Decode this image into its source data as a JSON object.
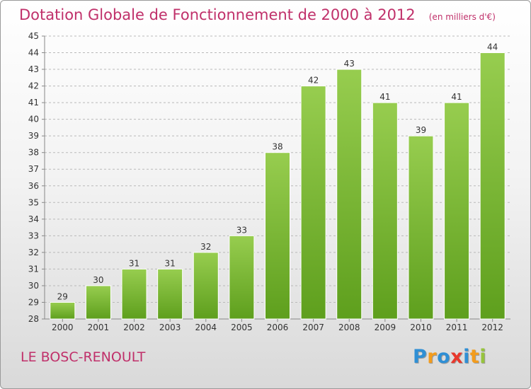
{
  "chart_data": {
    "type": "bar",
    "title": "Dotation Globale de Fonctionnement de 2000 à 2012",
    "subtitle": "(en milliers d'€)",
    "categories": [
      "2000",
      "2001",
      "2002",
      "2003",
      "2004",
      "2005",
      "2006",
      "2007",
      "2008",
      "2009",
      "2010",
      "2011",
      "2012"
    ],
    "values": [
      29,
      30,
      31,
      31,
      32,
      33,
      38,
      42,
      43,
      41,
      39,
      41,
      44
    ],
    "ylim": [
      28,
      45
    ],
    "yticks": [
      28,
      29,
      30,
      31,
      32,
      33,
      34,
      35,
      36,
      37,
      38,
      39,
      40,
      41,
      42,
      43,
      44,
      45
    ],
    "grid": true,
    "colors": {
      "bar_top": "#97cd4f",
      "bar_bottom": "#5e9f1d",
      "title": "#c0306a"
    }
  },
  "footer": {
    "commune": "LE BOSC-RENOULT",
    "logo_letters": [
      "P",
      "r",
      "o",
      "x",
      "i",
      "t",
      "i"
    ],
    "logo_colors": [
      "#2f8fd5",
      "#f39c1d",
      "#2f8fd5",
      "#e8382c",
      "#2f8fd5",
      "#f39c1d",
      "#97c43c"
    ]
  }
}
